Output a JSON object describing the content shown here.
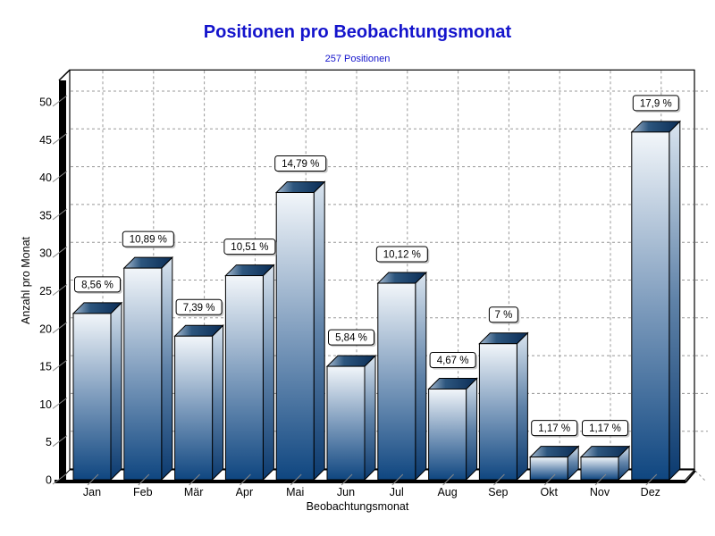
{
  "window": {
    "background": "#ffffff"
  },
  "chart_data": {
    "type": "bar",
    "style": "3d-column",
    "title": "Positionen pro Beobachtungsmonat",
    "subtitle": "257 Positionen",
    "xlabel": "Beobachtungsmonat",
    "ylabel": "Anzahl pro Monat",
    "categories": [
      "Jan",
      "Feb",
      "Mär",
      "Apr",
      "Mai",
      "Jun",
      "Jul",
      "Aug",
      "Sep",
      "Okt",
      "Nov",
      "Dez"
    ],
    "values": [
      22,
      28,
      19,
      27,
      38,
      15,
      26,
      12,
      18,
      3,
      3,
      46
    ],
    "bar_labels": [
      "8,56 %",
      "10,89 %",
      "7,39 %",
      "10,51 %",
      "14,79 %",
      "5,84 %",
      "10,12 %",
      "4,67 %",
      "7 %",
      "1,17 %",
      "1,17 %",
      "17,9 %"
    ],
    "total_positions": 257,
    "ylim": [
      0,
      52.8
    ],
    "yticks": [
      0,
      5,
      10,
      15,
      20,
      25,
      30,
      35,
      40,
      45,
      50
    ],
    "grid": "dashed",
    "legend": "none",
    "colors": {
      "title_text": "#1414cc",
      "axis_text": "#000000",
      "grid_line": "#989898",
      "outline": "#000000",
      "wall_fill": "#ffffff",
      "bar_front_top": "#f2f6fa",
      "bar_front_mid": "#7e9cbd",
      "bar_front_bottom": "#0f4680",
      "bar_side_top": "#d9e4ef",
      "bar_side_bottom": "#0b3a6f",
      "bar_top_light": "#a9bdd3",
      "bar_top_dark": "#0a2c55",
      "label_box_bg": "#ffffff",
      "label_box_shadow": "#9a9a9a"
    }
  }
}
